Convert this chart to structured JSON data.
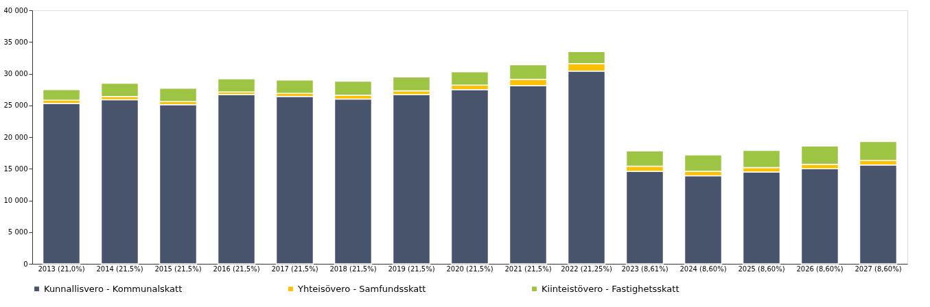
{
  "chart_data": {
    "type": "bar",
    "stacked": true,
    "categories": [
      "2013 (21,0%)",
      "2014 (21,5%)",
      "2015 (21,5%)",
      "2016 (21,5%)",
      "2017 (21,5%)",
      "2018 (21,5%)",
      "2019 (21,5%)",
      "2020 (21,5%)",
      "2021 (21,5%)",
      "2022 (21,25%)",
      "2023 (8,61%)",
      "2024 (8,60%)",
      "2025 (8,60%)",
      "2026 (8,60%)",
      "2027 (8,60%)"
    ],
    "series": [
      {
        "name": "Kunnallisvero - Kommunalskatt",
        "color": "#48546c",
        "values": [
          25300,
          25900,
          25100,
          26700,
          26400,
          26000,
          26700,
          27500,
          28100,
          30400,
          14600,
          13900,
          14500,
          15000,
          15600
        ]
      },
      {
        "name": "Yhteisövero - Samfundsskatt",
        "color": "#ffc000",
        "values": [
          500,
          500,
          500,
          400,
          500,
          600,
          600,
          700,
          1000,
          1200,
          800,
          700,
          700,
          700,
          700
        ]
      },
      {
        "name": "Kiinteistövero - Fastighetsskatt",
        "color": "#9dc443",
        "values": [
          1700,
          2100,
          2100,
          2100,
          2100,
          2200,
          2200,
          2100,
          2300,
          1900,
          2400,
          2600,
          2700,
          2900,
          3000
        ]
      }
    ],
    "ylim": [
      0,
      40000
    ],
    "yticks": [
      0,
      {
        "value": 5000,
        "label": "5 000"
      },
      {
        "value": 10000,
        "label": "10 000"
      },
      {
        "value": 15000,
        "label": "15 000"
      },
      {
        "value": 20000,
        "label": "20 000"
      },
      {
        "value": 25000,
        "label": "25 000"
      },
      {
        "value": 30000,
        "label": "30 000"
      },
      {
        "value": 35000,
        "label": "35 000"
      },
      {
        "value": 40000,
        "label": "40 000"
      }
    ],
    "grid": false,
    "legend": "bottom"
  }
}
